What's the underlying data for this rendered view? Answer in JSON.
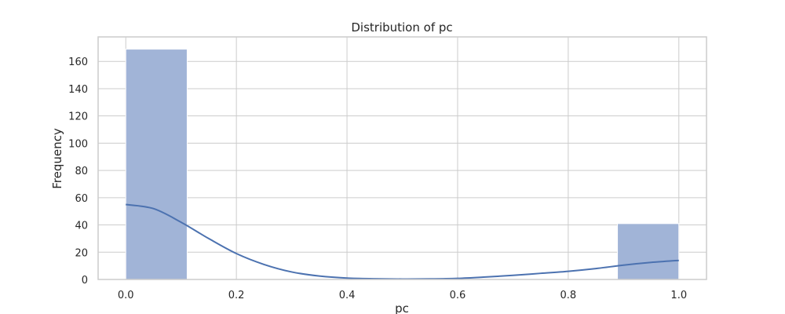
{
  "chart_data": {
    "type": "bar",
    "subtype": "histogram-with-kde",
    "title": "Distribution of pc",
    "xlabel": "pc",
    "ylabel": "Frequency",
    "xlim": [
      -0.05,
      1.05
    ],
    "ylim": [
      0,
      178
    ],
    "x_ticks": [
      0.0,
      0.2,
      0.4,
      0.6,
      0.8,
      1.0
    ],
    "x_tick_labels": [
      "0.0",
      "0.2",
      "0.4",
      "0.6",
      "0.8",
      "1.0"
    ],
    "y_ticks": [
      0,
      20,
      40,
      60,
      80,
      100,
      120,
      140,
      160
    ],
    "y_tick_labels": [
      "0",
      "20",
      "40",
      "60",
      "80",
      "100",
      "120",
      "140",
      "160"
    ],
    "grid": true,
    "bins": [
      {
        "start": 0.0,
        "end": 0.111,
        "count": 169
      },
      {
        "start": 0.889,
        "end": 1.0,
        "count": 41
      }
    ],
    "kde": {
      "x": [
        0.0,
        0.05,
        0.1,
        0.15,
        0.2,
        0.25,
        0.3,
        0.35,
        0.4,
        0.45,
        0.5,
        0.55,
        0.6,
        0.65,
        0.7,
        0.75,
        0.8,
        0.85,
        0.9,
        0.95,
        1.0
      ],
      "y": [
        55,
        52,
        42,
        30,
        19,
        11,
        5.5,
        2.5,
        1,
        0.5,
        0.3,
        0.4,
        0.8,
        1.8,
        3,
        4.5,
        6,
        8,
        10.5,
        12.5,
        14
      ]
    },
    "colors": {
      "bar_fill": "#a1b4d7",
      "bar_edge": "#ffffff",
      "kde_line": "#4c72b0",
      "grid": "#cccccc",
      "frame": "#cccccc"
    }
  }
}
